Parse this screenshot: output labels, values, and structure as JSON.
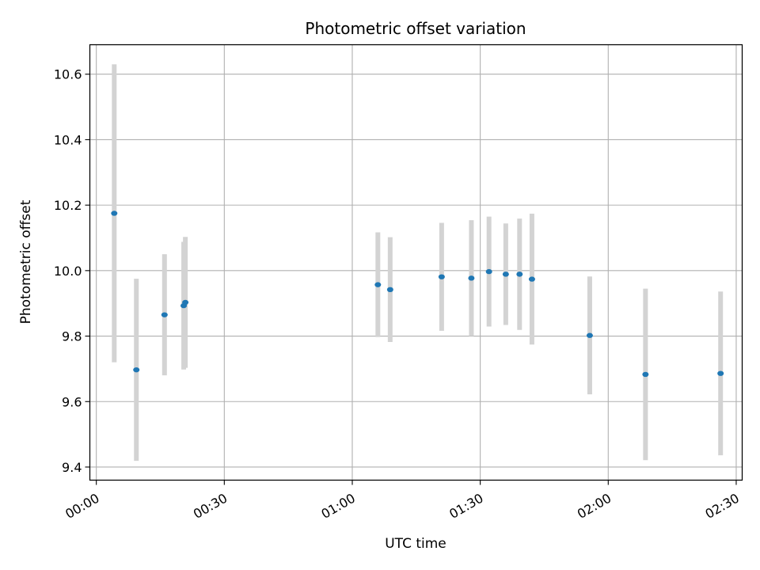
{
  "chart_data": {
    "type": "scatter",
    "title": "Photometric offset variation",
    "xlabel": "UTC time",
    "ylabel": "Photometric offset",
    "grid": true,
    "x_range": [
      "00:00",
      "02:30"
    ],
    "xlim": [
      "-00:01:31",
      "02:31:24"
    ],
    "ylim": [
      9.36,
      10.69
    ],
    "x_ticks": [
      "00:00",
      "00:30",
      "01:00",
      "01:30",
      "02:00",
      "02:30"
    ],
    "y_ticks": [
      9.4,
      9.6,
      9.8,
      10.0,
      10.2,
      10.4,
      10.6
    ],
    "y_tick_labels": [
      "9.4",
      "9.6",
      "9.8",
      "10.0",
      "10.2",
      "10.4",
      "10.6"
    ],
    "errorbar_color": "#d3d3d3",
    "point_color": "#1f77b4",
    "points": [
      {
        "x": "00:04:12",
        "y": 10.175,
        "yerr": 0.455
      },
      {
        "x": "00:09:23",
        "y": 9.697,
        "yerr": 0.278
      },
      {
        "x": "00:15:59",
        "y": 9.865,
        "yerr": 0.185
      },
      {
        "x": "00:20:29",
        "y": 9.893,
        "yerr": 0.195
      },
      {
        "x": "00:20:52",
        "y": 9.903,
        "yerr": 0.2
      },
      {
        "x": "01:06:00",
        "y": 9.957,
        "yerr": 0.16
      },
      {
        "x": "01:08:53",
        "y": 9.942,
        "yerr": 0.16
      },
      {
        "x": "01:20:57",
        "y": 9.981,
        "yerr": 0.165
      },
      {
        "x": "01:27:55",
        "y": 9.977,
        "yerr": 0.177
      },
      {
        "x": "01:32:03",
        "y": 9.997,
        "yerr": 0.168
      },
      {
        "x": "01:35:59",
        "y": 9.989,
        "yerr": 0.155
      },
      {
        "x": "01:39:13",
        "y": 9.989,
        "yerr": 0.17
      },
      {
        "x": "01:42:07",
        "y": 9.974,
        "yerr": 0.2
      },
      {
        "x": "01:55:40",
        "y": 9.802,
        "yerr": 0.18
      },
      {
        "x": "02:08:44",
        "y": 9.683,
        "yerr": 0.262
      },
      {
        "x": "02:26:20",
        "y": 9.686,
        "yerr": 0.25
      }
    ]
  }
}
